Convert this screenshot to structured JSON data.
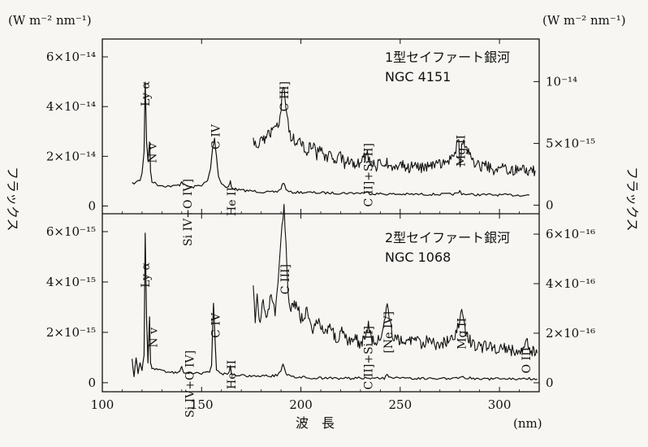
{
  "units": {
    "left": "(W m⁻² nm⁻¹)",
    "right": "(W m⁻² nm⁻¹)",
    "x": "(nm)"
  },
  "axis_titles": {
    "flux_left": "フラックス",
    "flux_right": "フラックス",
    "xlabel": "波　長"
  },
  "x_ticks": [
    "100",
    "150",
    "200",
    "250",
    "300"
  ],
  "chart_data": [
    {
      "type": "line",
      "panel": "top",
      "title": "1型セイファート銀河",
      "subtitle": "NGC 4151",
      "xlim": [
        100,
        320
      ],
      "y_left": {
        "ticks": [
          "6×10⁻¹⁴",
          "4×10⁻¹⁴",
          "2×10⁻¹⁴",
          "0"
        ],
        "values": [
          6e-14,
          4e-14,
          2e-14,
          0
        ],
        "ylim": [
          -5e-16,
          6e-14
        ]
      },
      "y_right": {
        "ticks": [
          "10⁻¹⁴",
          "5×10⁻¹⁵",
          "0"
        ],
        "values": [
          1e-14,
          5e-15,
          0
        ],
        "ylim": [
          -1.7e-16,
          1.2e-14
        ]
      },
      "series": [
        {
          "axis": "left",
          "points": [
            [
              115,
              9e-15
            ],
            [
              117,
              9.5e-15
            ],
            [
              119,
              1.05e-14
            ],
            [
              120,
              1.3e-14
            ],
            [
              121,
              2.2e-14
            ],
            [
              121.6,
              5e-14
            ],
            [
              122.3,
              2.6e-14
            ],
            [
              123,
              1.8e-14
            ],
            [
              123.8,
              2.6e-14
            ],
            [
              124.3,
              1.4e-14
            ],
            [
              125,
              1e-14
            ],
            [
              128,
              8.5e-15
            ],
            [
              132,
              8e-15
            ],
            [
              136,
              8e-15
            ],
            [
              139,
              8.5e-15
            ],
            [
              140,
              1e-14
            ],
            [
              141,
              8.5e-15
            ],
            [
              145,
              7.5e-15
            ],
            [
              150,
              8.5e-15
            ],
            [
              153,
              1e-14
            ],
            [
              154.5,
              1.5e-14
            ],
            [
              155.5,
              2.3e-14
            ],
            [
              156.5,
              2.7e-14
            ],
            [
              157.5,
              2e-14
            ],
            [
              158.5,
              1.2e-14
            ],
            [
              160,
              9e-15
            ],
            [
              163,
              7.5e-15
            ],
            [
              164,
              8.5e-15
            ],
            [
              164.5,
              1e-14
            ],
            [
              165,
              7.5e-15
            ],
            [
              168,
              6.5e-15
            ],
            [
              172,
              6.2e-15
            ],
            [
              176,
              6e-15
            ],
            [
              180,
              5.7e-15
            ],
            [
              185,
              5.5e-15
            ],
            [
              188,
              5.8e-15
            ],
            [
              190,
              7e-15
            ],
            [
              191,
              9.5e-15
            ],
            [
              192,
              8e-15
            ],
            [
              193,
              6e-15
            ],
            [
              195,
              5.5e-15
            ],
            [
              200,
              5.5e-15
            ],
            [
              210,
              5.3e-15
            ],
            [
              220,
              5.2e-15
            ],
            [
              230,
              5.2e-15
            ],
            [
              234,
              5.5e-15
            ],
            [
              235,
              5e-15
            ],
            [
              245,
              4.8e-15
            ],
            [
              255,
              4.7e-15
            ],
            [
              265,
              4.7e-15
            ],
            [
              275,
              4.7e-15
            ],
            [
              279,
              5e-15
            ],
            [
              280,
              6e-15
            ],
            [
              281,
              5e-15
            ],
            [
              285,
              4.6e-15
            ],
            [
              295,
              4.5e-15
            ],
            [
              305,
              4.4e-15
            ],
            [
              315,
              4.4e-15
            ]
          ]
        },
        {
          "axis": "right",
          "points": [
            [
              176,
              5e-15
            ],
            [
              178,
              4.6e-15
            ],
            [
              180,
              5.2e-15
            ],
            [
              183,
              5.6e-15
            ],
            [
              186,
              5.9e-15
            ],
            [
              188,
              6.3e-15
            ],
            [
              189.5,
              7.2e-15
            ],
            [
              190.5,
              8.8e-15
            ],
            [
              191.5,
              9.6e-15
            ],
            [
              192.5,
              8.2e-15
            ],
            [
              193.5,
              6.6e-15
            ],
            [
              195,
              5.6e-15
            ],
            [
              198,
              5e-15
            ],
            [
              200,
              5.2e-15
            ],
            [
              203,
              4.4e-15
            ],
            [
              206,
              5e-15
            ],
            [
              208,
              4e-15
            ],
            [
              210,
              4.8e-15
            ],
            [
              212,
              3.7e-15
            ],
            [
              215,
              4.2e-15
            ],
            [
              218,
              3.6e-15
            ],
            [
              220,
              4e-15
            ],
            [
              222,
              3.4e-15
            ],
            [
              225,
              3.7e-15
            ],
            [
              228,
              3.3e-15
            ],
            [
              231,
              3.6e-15
            ],
            [
              233.5,
              4.2e-15
            ],
            [
              234.5,
              3.6e-15
            ],
            [
              238,
              3.2e-15
            ],
            [
              242,
              3.5e-15
            ],
            [
              246,
              3.1e-15
            ],
            [
              250,
              3.4e-15
            ],
            [
              254,
              3e-15
            ],
            [
              258,
              3.2e-15
            ],
            [
              262,
              2.9e-15
            ],
            [
              266,
              3.3e-15
            ],
            [
              270,
              3.4e-15
            ],
            [
              274,
              3.6e-15
            ],
            [
              276,
              3.9e-15
            ],
            [
              278,
              4.5e-15
            ],
            [
              279.5,
              5.2e-15
            ],
            [
              280.2,
              3e-15
            ],
            [
              281,
              5e-15
            ],
            [
              282,
              5.2e-15
            ],
            [
              284,
              4.4e-15
            ],
            [
              287,
              3.6e-15
            ],
            [
              290,
              3e-15
            ],
            [
              294,
              3.2e-15
            ],
            [
              298,
              2.8e-15
            ],
            [
              302,
              3e-15
            ],
            [
              306,
              2.8e-15
            ],
            [
              310,
              2.9e-15
            ],
            [
              314,
              2.7e-15
            ],
            [
              318,
              2.8e-15
            ]
          ]
        }
      ],
      "annotations": [
        "Ly α",
        "N v",
        "Si IV+O IV]",
        "C IV",
        "He II",
        "C III]",
        "C II]+Si II]",
        "Mg II"
      ]
    },
    {
      "type": "line",
      "panel": "bottom",
      "title": "2型セイファート銀河",
      "subtitle": "NGC 1068",
      "xlim": [
        100,
        320
      ],
      "y_left": {
        "ticks": [
          "6×10⁻¹⁵",
          "4×10⁻¹⁵",
          "2×10⁻¹⁵",
          "0"
        ],
        "values": [
          6e-15,
          4e-15,
          2e-15,
          0
        ],
        "ylim": [
          -1e-16,
          6e-15
        ]
      },
      "y_right": {
        "ticks": [
          "6×10⁻¹⁶",
          "4×10⁻¹⁶",
          "2×10⁻¹⁶",
          "0"
        ],
        "values": [
          6e-16,
          4e-16,
          2e-16,
          0
        ],
        "ylim": [
          -1e-17,
          6.1e-16
        ]
      },
      "series": [
        {
          "axis": "left",
          "points": [
            [
              115,
              9e-16
            ],
            [
              116,
              2e-16
            ],
            [
              117,
              1e-15
            ],
            [
              118,
              4e-16
            ],
            [
              119,
              8e-16
            ],
            [
              120,
              5e-16
            ],
            [
              121,
              1.1e-15
            ],
            [
              121.6,
              5.9e-15
            ],
            [
              122.3,
              2.5e-15
            ],
            [
              123,
              8e-16
            ],
            [
              123.8,
              2.6e-15
            ],
            [
              124.3,
              8e-16
            ],
            [
              125,
              6e-16
            ],
            [
              128,
              5e-16
            ],
            [
              132,
              4.5e-16
            ],
            [
              136,
              4e-16
            ],
            [
              139,
              4.5e-16
            ],
            [
              140,
              6e-16
            ],
            [
              141,
              4e-16
            ],
            [
              145,
              3.8e-16
            ],
            [
              150,
              3.8e-16
            ],
            [
              154,
              4e-16
            ],
            [
              155,
              7e-16
            ],
            [
              155.5,
              2e-15
            ],
            [
              156,
              3.2e-15
            ],
            [
              156.6,
              2e-15
            ],
            [
              157.5,
              5e-16
            ],
            [
              160,
              3.5e-16
            ],
            [
              163,
              3.3e-16
            ],
            [
              164,
              4.5e-16
            ],
            [
              164.5,
              7e-16
            ],
            [
              165,
              3.5e-16
            ],
            [
              170,
              2.8e-16
            ],
            [
              175,
              2.7e-16
            ],
            [
              180,
              2.6e-16
            ],
            [
              185,
              2.7e-16
            ],
            [
              188,
              3e-16
            ],
            [
              190,
              5e-16
            ],
            [
              191,
              7.2e-16
            ],
            [
              192,
              5e-16
            ],
            [
              193,
              3e-16
            ],
            [
              197,
              2.2e-16
            ],
            [
              205,
              2e-16
            ],
            [
              215,
              1.8e-16
            ],
            [
              225,
              1.7e-16
            ],
            [
              234,
              2e-16
            ],
            [
              236,
              1.7e-16
            ],
            [
              242,
              1.8e-16
            ],
            [
              243.5,
              3e-16
            ],
            [
              245,
              1.8e-16
            ],
            [
              255,
              1.6e-16
            ],
            [
              265,
              1.6e-16
            ],
            [
              275,
              1.6e-16
            ],
            [
              280,
              2e-16
            ],
            [
              281,
              2.8e-16
            ],
            [
              282,
              2e-16
            ],
            [
              290,
              1.5e-16
            ],
            [
              300,
              1.5e-16
            ],
            [
              310,
              1.5e-16
            ],
            [
              315,
              1.6e-16
            ],
            [
              319,
              1.5e-16
            ]
          ]
        },
        {
          "axis": "right",
          "points": [
            [
              176,
              3.7e-16
            ],
            [
              177,
              2.6e-16
            ],
            [
              178,
              3.5e-16
            ],
            [
              179,
              2.4e-16
            ],
            [
              181,
              3.4e-16
            ],
            [
              183,
              2.6e-16
            ],
            [
              185,
              3.6e-16
            ],
            [
              187,
              2.8e-16
            ],
            [
              188.5,
              3.9e-16
            ],
            [
              189.5,
              5.2e-16
            ],
            [
              190.5,
              6.4e-16
            ],
            [
              191.5,
              7e-16
            ],
            [
              192.5,
              5.5e-16
            ],
            [
              193.5,
              3.6e-16
            ],
            [
              195,
              3e-16
            ],
            [
              198,
              3.2e-16
            ],
            [
              200,
              2.6e-16
            ],
            [
              203,
              2.9e-16
            ],
            [
              206,
              2.2e-16
            ],
            [
              209,
              2.6e-16
            ],
            [
              212,
              1.9e-16
            ],
            [
              215,
              2.3e-16
            ],
            [
              218,
              1.7e-16
            ],
            [
              221,
              2.1e-16
            ],
            [
              224,
              1.6e-16
            ],
            [
              227,
              1.9e-16
            ],
            [
              230,
              1.5e-16
            ],
            [
              232.5,
              1.9e-16
            ],
            [
              234,
              2.5e-16
            ],
            [
              235.5,
              1.7e-16
            ],
            [
              238,
              1.6e-16
            ],
            [
              240,
              1.9e-16
            ],
            [
              242,
              2.4e-16
            ],
            [
              243.5,
              3.1e-16
            ],
            [
              245,
              2.3e-16
            ],
            [
              247,
              1.8e-16
            ],
            [
              250,
              1.7e-16
            ],
            [
              254,
              1.6e-16
            ],
            [
              258,
              1.8e-16
            ],
            [
              262,
              1.5e-16
            ],
            [
              265,
              1.9e-16
            ],
            [
              268,
              1.5e-16
            ],
            [
              272,
              1.6e-16
            ],
            [
              275,
              1.7e-16
            ],
            [
              277,
              1.8e-16
            ],
            [
              279,
              2.2e-16
            ],
            [
              280.5,
              2.9e-16
            ],
            [
              281.5,
              2.8e-16
            ],
            [
              283,
              2e-16
            ],
            [
              286,
              1.6e-16
            ],
            [
              290,
              1.4e-16
            ],
            [
              294,
              1.5e-16
            ],
            [
              298,
              1.3e-16
            ],
            [
              302,
              1.4e-16
            ],
            [
              306,
              1.3e-16
            ],
            [
              310,
              1.3e-16
            ],
            [
              312,
              1.4e-16
            ],
            [
              313.5,
              1.9e-16
            ],
            [
              314.5,
              1.6e-16
            ],
            [
              316,
              1.3e-16
            ],
            [
              319,
              1.2e-16
            ]
          ]
        }
      ],
      "annotations": [
        "Ly α",
        "N v",
        "Si IV+O IV]",
        "C IV",
        "He II",
        "C III]",
        "C II]+Si II]",
        "[Ne IV]",
        "Mg II",
        "O III"
      ]
    }
  ]
}
